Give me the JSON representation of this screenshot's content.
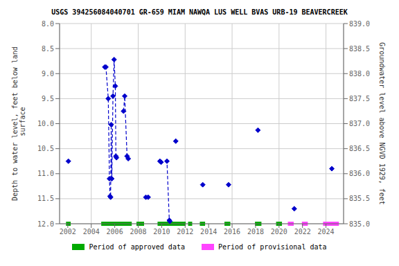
{
  "chart_data": {
    "type": "line",
    "title": "USGS 394256084040701 GR-659 MIAM NAWQA LUS WELL BVAS URB-19 BEAVERCREEK",
    "ylabel": "Depth to water level, feet below land\n surface",
    "y2label": "Groundwater level above NGVD 1929, feet",
    "xlim": [
      2001.3,
      2025.5
    ],
    "xticks": [
      2002,
      2004,
      2006,
      2008,
      2010,
      2012,
      2014,
      2016,
      2018,
      2020,
      2022,
      2024
    ],
    "ylim": [
      12.0,
      8.0
    ],
    "yticks": [
      {
        "value": 8.0,
        "label": "8.0"
      },
      8.5,
      {
        "value": 9.0,
        "label": "9.0"
      },
      9.5,
      {
        "value": 10.0,
        "label": "10.0"
      },
      10.5,
      {
        "value": 11.0,
        "label": "11.0"
      },
      11.5,
      {
        "value": 12.0,
        "label": "12.0"
      }
    ],
    "y2lim": [
      835.0,
      839.0
    ],
    "y2ticks": [
      {
        "value": 835.0,
        "label": "835.0"
      },
      835.5,
      {
        "value": 836.0,
        "label": "836.0"
      },
      836.5,
      {
        "value": 837.0,
        "label": "837.0"
      },
      837.5,
      {
        "value": 838.0,
        "label": "838.0"
      },
      838.5,
      {
        "value": 839.0,
        "label": "839.0"
      }
    ],
    "grid": true,
    "legend": "bottom",
    "series": [
      {
        "type": "line",
        "color": "#0000cc",
        "line_style": "dashed",
        "marker": "diamond",
        "x": [
          2005.15,
          2005.25,
          2005.45,
          2005.55,
          2005.6,
          2005.65,
          2005.7,
          2005.75,
          2005.85,
          2005.95,
          2006.05,
          2006.1,
          2006.15
        ],
        "values": [
          8.87,
          8.87,
          9.5,
          11.1,
          11.45,
          11.47,
          10.02,
          11.1,
          9.45,
          8.72,
          9.25,
          10.65,
          10.68
        ]
      },
      {
        "type": "line",
        "color": "#0000cc",
        "line_style": "dashed",
        "marker": "diamond",
        "x": [
          2006.75,
          2006.85,
          2007.05,
          2007.15
        ],
        "values": [
          9.75,
          9.45,
          10.65,
          10.7
        ]
      },
      {
        "type": "line",
        "color": "#0000cc",
        "line_style": "dashed",
        "marker": "diamond",
        "x": [
          2008.65,
          2008.85
        ],
        "values": [
          11.47,
          11.47
        ]
      },
      {
        "type": "line",
        "color": "#0000cc",
        "line_style": "dashed",
        "marker": "diamond",
        "x": [
          2009.85,
          2009.95,
          2010.45,
          2010.65,
          2010.7
        ],
        "values": [
          10.75,
          10.77,
          10.75,
          11.93,
          11.95
        ]
      },
      {
        "type": "scatter",
        "color": "#0000cc",
        "marker": "diamond",
        "x": [
          2002.05,
          2011.2,
          2013.5,
          2015.7,
          2018.2,
          2021.3,
          2024.5
        ],
        "values": [
          10.75,
          10.35,
          11.22,
          11.22,
          10.13,
          11.7,
          10.9
        ]
      }
    ],
    "periods": [
      {
        "name": "Period of approved data",
        "color": "#00aa00",
        "y": 12.0,
        "ranges": [
          [
            2001.85,
            2002.25
          ],
          [
            2004.85,
            2007.45
          ],
          [
            2007.85,
            2008.5
          ],
          [
            2009.65,
            2012.05
          ],
          [
            2012.25,
            2012.6
          ],
          [
            2013.25,
            2013.7
          ],
          [
            2015.35,
            2015.85
          ],
          [
            2017.95,
            2018.5
          ],
          [
            2019.75,
            2020.25
          ]
        ]
      },
      {
        "name": "Period of provisional data",
        "color": "#ff44ff",
        "y": 12.0,
        "ranges": [
          [
            2020.75,
            2021.25
          ],
          [
            2021.95,
            2022.45
          ],
          [
            2023.75,
            2025.1
          ]
        ]
      }
    ]
  }
}
